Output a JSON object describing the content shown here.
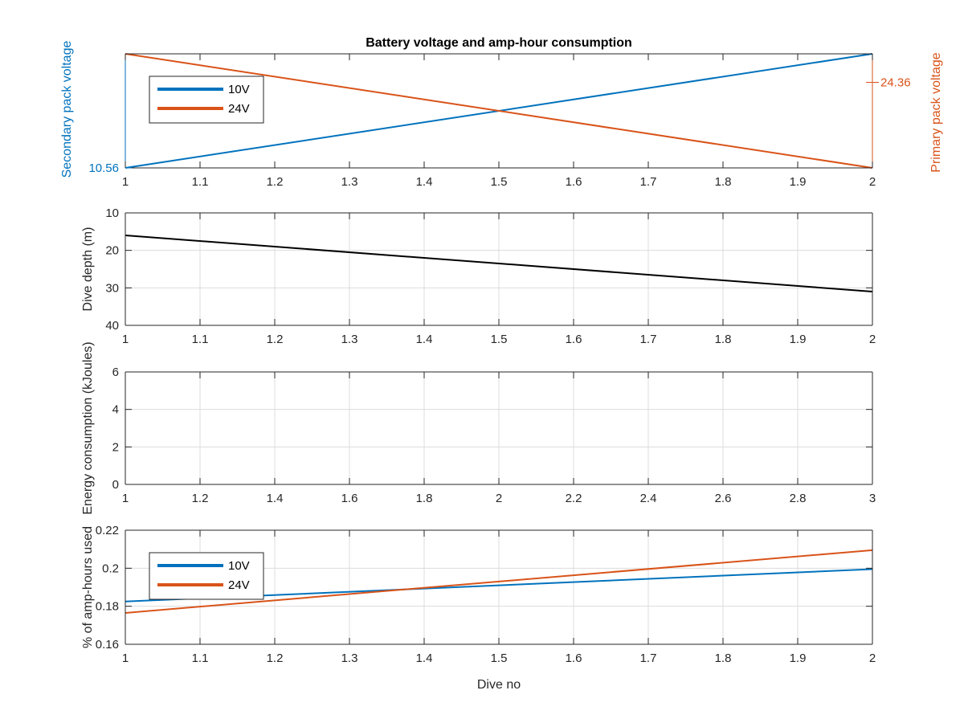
{
  "chart_data": [
    {
      "type": "line",
      "title": "Battery voltage and amp-hour consumption",
      "xlabel": "",
      "xlim": [
        1,
        2
      ],
      "xticks": [
        "1",
        "1.1",
        "1.2",
        "1.3",
        "1.4",
        "1.5",
        "1.6",
        "1.7",
        "1.8",
        "1.9",
        "2"
      ],
      "grid": false,
      "legend_placement": "top-left",
      "left_axis": {
        "label": "Secondary pack voltage",
        "color": "#0072BD",
        "range": [
          10.56,
          10.58
        ],
        "ticks": [
          "10.56"
        ]
      },
      "right_axis": {
        "label": "Primary pack voltage",
        "color": "#D95319",
        "range": [
          24.33,
          24.37
        ],
        "ticks": [
          "24.36"
        ]
      },
      "series": [
        {
          "name": "10V",
          "axis": "left",
          "color": "#0072BD",
          "x": [
            1,
            2
          ],
          "y": [
            10.56,
            10.58
          ]
        },
        {
          "name": "24V",
          "axis": "right",
          "color": "#D95319",
          "x": [
            1,
            2
          ],
          "y": [
            24.37,
            24.33
          ]
        }
      ]
    },
    {
      "type": "line",
      "title": "",
      "xlabel": "",
      "ylabel": "Dive depth (m)",
      "xlim": [
        1,
        2
      ],
      "ylim": [
        10,
        40
      ],
      "y_reversed": true,
      "xticks": [
        "1",
        "1.1",
        "1.2",
        "1.3",
        "1.4",
        "1.5",
        "1.6",
        "1.7",
        "1.8",
        "1.9",
        "2"
      ],
      "yticks": [
        "10",
        "20",
        "30",
        "40"
      ],
      "grid": true,
      "series": [
        {
          "color": "#000000",
          "x": [
            1,
            2
          ],
          "y": [
            16,
            31
          ]
        }
      ]
    },
    {
      "type": "line",
      "title": "",
      "xlabel": "",
      "ylabel": "Energy consumption (kJoules)",
      "xlim": [
        1,
        3
      ],
      "ylim": [
        0,
        6
      ],
      "xticks": [
        "1",
        "1.2",
        "1.4",
        "1.6",
        "1.8",
        "2",
        "2.2",
        "2.4",
        "2.6",
        "2.8",
        "3"
      ],
      "yticks": [
        "0",
        "2",
        "4",
        "6"
      ],
      "grid": true,
      "series": []
    },
    {
      "type": "line",
      "title": "",
      "xlabel": "Dive no",
      "ylabel": "% of amp-hours used",
      "xlim": [
        1,
        2
      ],
      "ylim": [
        0.16,
        0.22
      ],
      "xticks": [
        "1",
        "1.1",
        "1.2",
        "1.3",
        "1.4",
        "1.5",
        "1.6",
        "1.7",
        "1.8",
        "1.9",
        "2"
      ],
      "yticks": [
        "0.16",
        "0.18",
        "0.2",
        "0.22"
      ],
      "grid": true,
      "legend_placement": "top-left",
      "series": [
        {
          "name": "10V",
          "color": "#0072BD",
          "x": [
            1,
            2
          ],
          "y": [
            0.1825,
            0.1995
          ]
        },
        {
          "name": "24V",
          "color": "#D95319",
          "x": [
            1,
            2
          ],
          "y": [
            0.1765,
            0.2095
          ]
        }
      ]
    }
  ]
}
